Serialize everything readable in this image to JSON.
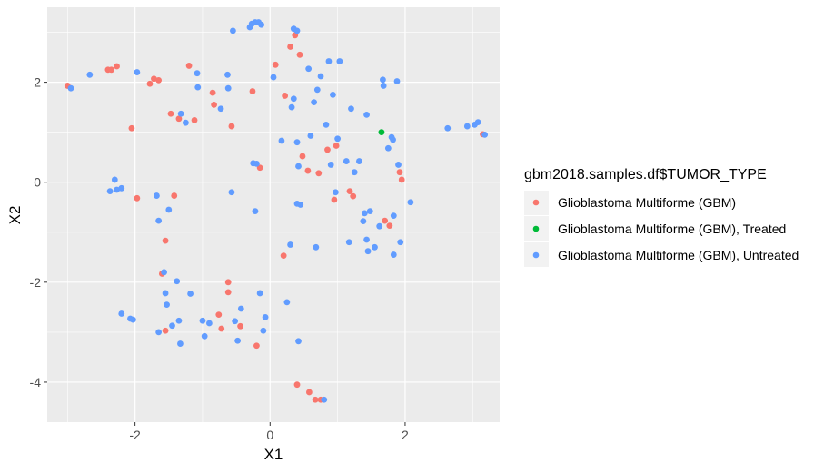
{
  "chart_data": {
    "type": "scatter",
    "xlabel": "X1",
    "ylabel": "X2",
    "xlim": [
      -3.3,
      3.4
    ],
    "ylim": [
      -4.8,
      3.5
    ],
    "x_ticks": [
      -2,
      0,
      2
    ],
    "y_ticks": [
      -4,
      -2,
      0,
      2
    ],
    "x_tick_labels": [
      "-2",
      "0",
      "2"
    ],
    "y_tick_labels": [
      "-4",
      "-2",
      "0",
      "2"
    ],
    "grid": true,
    "legend_position": "right",
    "legend": {
      "title": "gbm2018.samples.df$TUMOR_TYPE",
      "entries": [
        "Glioblastoma Multiforme (GBM)",
        "Glioblastoma Multiforme (GBM), Treated",
        "Glioblastoma Multiforme (GBM), Untreated"
      ]
    },
    "colors": {
      "GBM": "#F8766D",
      "Treated": "#00BA38",
      "Untreated": "#619CFF",
      "panel": "#EBEBEB",
      "grid": "#ffffff"
    },
    "series": [
      {
        "name": "Glioblastoma Multiforme (GBM)",
        "points": [
          [
            -3.0,
            1.93
          ],
          [
            -2.4,
            2.25
          ],
          [
            -2.35,
            2.25
          ],
          [
            -2.27,
            2.32
          ],
          [
            -2.05,
            1.08
          ],
          [
            -1.97,
            -0.32
          ],
          [
            -1.78,
            1.97
          ],
          [
            -1.72,
            2.07
          ],
          [
            -1.65,
            2.04
          ],
          [
            -1.6,
            -1.83
          ],
          [
            -1.55,
            -1.17
          ],
          [
            -1.55,
            -2.97
          ],
          [
            -1.47,
            1.37
          ],
          [
            -1.42,
            -0.27
          ],
          [
            -1.35,
            1.27
          ],
          [
            -1.2,
            2.33
          ],
          [
            -1.12,
            1.24
          ],
          [
            -0.85,
            1.79
          ],
          [
            -0.83,
            1.55
          ],
          [
            -0.76,
            -2.65
          ],
          [
            -0.72,
            -2.93
          ],
          [
            -0.62,
            -2.0
          ],
          [
            -0.62,
            -2.2
          ],
          [
            -0.57,
            1.12
          ],
          [
            -0.44,
            -2.88
          ],
          [
            -0.26,
            1.82
          ],
          [
            -0.2,
            -3.27
          ],
          [
            -0.15,
            0.29
          ],
          [
            0.08,
            2.35
          ],
          [
            0.2,
            -1.47
          ],
          [
            0.22,
            1.73
          ],
          [
            0.3,
            2.71
          ],
          [
            0.37,
            2.94
          ],
          [
            0.4,
            -4.05
          ],
          [
            0.44,
            2.55
          ],
          [
            0.48,
            0.52
          ],
          [
            0.56,
            0.23
          ],
          [
            0.58,
            -4.2
          ],
          [
            0.67,
            -4.35
          ],
          [
            0.72,
            0.18
          ],
          [
            0.75,
            -4.35
          ],
          [
            0.85,
            0.65
          ],
          [
            0.95,
            -0.35
          ],
          [
            0.98,
            0.73
          ],
          [
            1.18,
            -0.18
          ],
          [
            1.23,
            -0.28
          ],
          [
            1.7,
            -0.77
          ],
          [
            1.77,
            -0.87
          ],
          [
            1.92,
            0.2
          ],
          [
            1.95,
            0.05
          ],
          [
            3.15,
            0.96
          ]
        ]
      },
      {
        "name": "Glioblastoma Multiforme (GBM), Treated",
        "points": [
          [
            1.65,
            1.0
          ]
        ]
      },
      {
        "name": "Glioblastoma Multiforme (GBM), Untreated",
        "points": [
          [
            -2.95,
            1.88
          ],
          [
            -2.67,
            2.15
          ],
          [
            -2.37,
            -0.18
          ],
          [
            -2.3,
            0.05
          ],
          [
            -2.27,
            -0.15
          ],
          [
            -2.2,
            -0.12
          ],
          [
            -2.2,
            -2.63
          ],
          [
            -2.07,
            -2.73
          ],
          [
            -2.03,
            -2.75
          ],
          [
            -1.97,
            2.2
          ],
          [
            -1.68,
            -0.27
          ],
          [
            -1.65,
            -0.77
          ],
          [
            -1.65,
            -3.0
          ],
          [
            -1.57,
            -1.8
          ],
          [
            -1.55,
            -2.22
          ],
          [
            -1.53,
            -2.45
          ],
          [
            -1.5,
            -0.55
          ],
          [
            -1.45,
            -2.87
          ],
          [
            -1.38,
            -1.98
          ],
          [
            -1.35,
            -2.77
          ],
          [
            -1.33,
            -3.23
          ],
          [
            -1.32,
            1.37
          ],
          [
            -1.25,
            1.19
          ],
          [
            -1.18,
            -2.23
          ],
          [
            -1.08,
            2.18
          ],
          [
            -1.07,
            1.9
          ],
          [
            -1.0,
            -2.77
          ],
          [
            -0.97,
            -3.08
          ],
          [
            -0.9,
            -2.82
          ],
          [
            -0.73,
            1.47
          ],
          [
            -0.63,
            2.15
          ],
          [
            -0.62,
            1.88
          ],
          [
            -0.57,
            -0.2
          ],
          [
            -0.52,
            -2.78
          ],
          [
            -0.55,
            3.03
          ],
          [
            -0.48,
            -3.17
          ],
          [
            -0.43,
            -2.53
          ],
          [
            -0.3,
            3.1
          ],
          [
            -0.27,
            3.17
          ],
          [
            -0.22,
            3.2
          ],
          [
            -0.2,
            0.37
          ],
          [
            -0.25,
            0.38
          ],
          [
            -0.22,
            -0.58
          ],
          [
            -0.17,
            3.2
          ],
          [
            -0.15,
            -2.22
          ],
          [
            -0.13,
            3.15
          ],
          [
            -0.1,
            -2.97
          ],
          [
            -0.07,
            -2.7
          ],
          [
            0.05,
            2.1
          ],
          [
            0.17,
            0.83
          ],
          [
            0.25,
            -2.4
          ],
          [
            0.3,
            -1.25
          ],
          [
            0.32,
            1.5
          ],
          [
            0.35,
            1.67
          ],
          [
            0.35,
            3.07
          ],
          [
            0.4,
            3.03
          ],
          [
            0.42,
            0.32
          ],
          [
            0.4,
            -0.43
          ],
          [
            0.42,
            -3.18
          ],
          [
            0.4,
            0.8
          ],
          [
            0.45,
            -0.45
          ],
          [
            0.57,
            2.27
          ],
          [
            0.6,
            0.93
          ],
          [
            0.65,
            1.6
          ],
          [
            0.68,
            -1.3
          ],
          [
            0.7,
            1.85
          ],
          [
            0.75,
            2.12
          ],
          [
            0.8,
            -4.35
          ],
          [
            0.83,
            1.15
          ],
          [
            0.87,
            2.42
          ],
          [
            0.9,
            0.35
          ],
          [
            0.93,
            1.75
          ],
          [
            0.97,
            -0.2
          ],
          [
            1.0,
            0.87
          ],
          [
            1.03,
            2.42
          ],
          [
            1.13,
            0.42
          ],
          [
            1.17,
            -1.2
          ],
          [
            1.2,
            1.47
          ],
          [
            1.25,
            0.2
          ],
          [
            1.32,
            0.42
          ],
          [
            1.38,
            -0.78
          ],
          [
            1.4,
            -0.62
          ],
          [
            1.43,
            1.35
          ],
          [
            1.43,
            -1.15
          ],
          [
            1.45,
            -1.38
          ],
          [
            1.48,
            -0.58
          ],
          [
            1.55,
            -1.3
          ],
          [
            1.62,
            -0.88
          ],
          [
            1.67,
            2.05
          ],
          [
            1.68,
            1.93
          ],
          [
            1.75,
            0.68
          ],
          [
            1.8,
            0.9
          ],
          [
            1.82,
            0.85
          ],
          [
            1.83,
            -0.67
          ],
          [
            1.83,
            -1.45
          ],
          [
            1.88,
            2.02
          ],
          [
            1.9,
            0.35
          ],
          [
            1.93,
            -1.2
          ],
          [
            2.08,
            -0.4
          ],
          [
            2.63,
            1.08
          ],
          [
            2.92,
            1.12
          ],
          [
            3.03,
            1.15
          ],
          [
            3.08,
            1.2
          ],
          [
            3.18,
            0.95
          ]
        ]
      }
    ]
  }
}
